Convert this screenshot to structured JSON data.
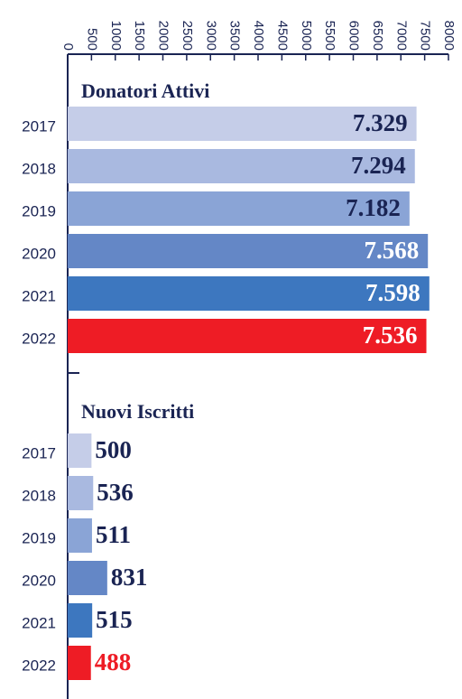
{
  "chart_data": {
    "type": "bar",
    "orientation": "horizontal",
    "xlim": [
      0,
      8000
    ],
    "xticks": [
      0,
      500,
      1000,
      1500,
      2000,
      2500,
      3000,
      3500,
      4000,
      4500,
      5000,
      5500,
      6000,
      6500,
      7000,
      7500,
      8000
    ],
    "groups": [
      {
        "title": "Donatori Attivi",
        "categories": [
          "2017",
          "2018",
          "2019",
          "2020",
          "2021",
          "2022"
        ],
        "values": [
          7329,
          7294,
          7182,
          7568,
          7598,
          7536
        ],
        "value_labels": [
          "7.329",
          "7.294",
          "7.182",
          "7.568",
          "7.598",
          "7.536"
        ],
        "colors": [
          "#c5cde8",
          "#a9b9e0",
          "#8aa4d6",
          "#6487c6",
          "#3d77bf",
          "#ee1c25"
        ]
      },
      {
        "title": "Nuovi Iscritti",
        "categories": [
          "2017",
          "2018",
          "2019",
          "2020",
          "2021",
          "2022"
        ],
        "values": [
          500,
          536,
          511,
          831,
          515,
          488
        ],
        "colors": [
          "#c5cde8",
          "#a9b9e0",
          "#8aa4d6",
          "#6487c6",
          "#3d77bf",
          "#ee1c25"
        ]
      }
    ]
  }
}
